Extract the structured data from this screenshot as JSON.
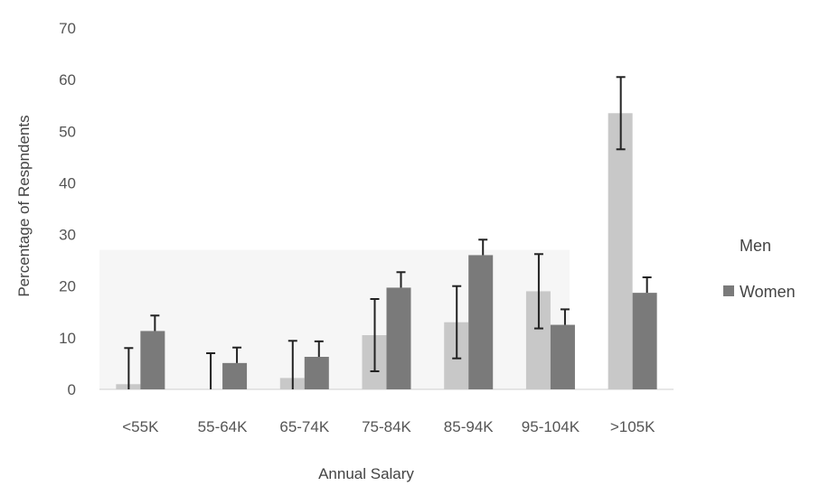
{
  "chart_data": {
    "type": "bar",
    "title": "",
    "xlabel": "Annual Salary",
    "ylabel": "Percentage of Respndents",
    "categories": [
      "<55K",
      "55-64K",
      "65-74K",
      "75-84K",
      "85-94K",
      "95-104K",
      ">105K"
    ],
    "yticks": [
      "0",
      "10",
      "20",
      "30",
      "40",
      "50",
      "60",
      "70"
    ],
    "ylim": [
      0,
      70
    ],
    "grid": false,
    "legend_position": "right",
    "series": [
      {
        "name": "Men",
        "color": "#c8c8c8",
        "values": [
          1,
          0,
          2.2,
          10.5,
          13,
          19,
          53.5
        ],
        "errors": [
          7,
          7,
          7.2,
          7,
          7,
          7.2,
          7
        ]
      },
      {
        "name": "Women",
        "color": "#7a7a7a",
        "values": [
          11.3,
          5.1,
          6.3,
          19.7,
          26,
          12.5,
          18.7
        ],
        "errors": [
          3,
          3,
          3,
          3,
          3,
          3,
          3
        ]
      }
    ]
  }
}
